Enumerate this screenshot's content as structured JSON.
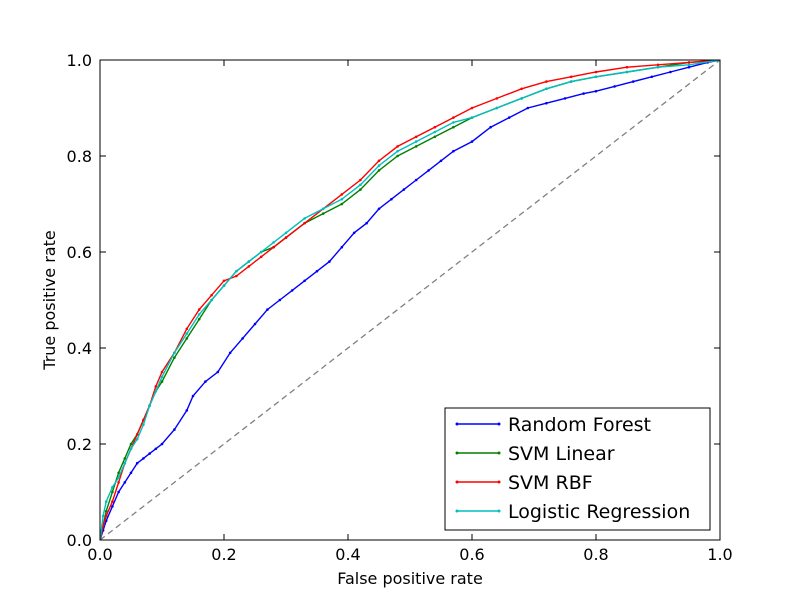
{
  "chart_data": {
    "type": "line",
    "xlabel": "False positive rate",
    "ylabel": "True positive rate",
    "xlim": [
      0.0,
      1.0
    ],
    "ylim": [
      0.0,
      1.0
    ],
    "xticks": [
      "0.0",
      "0.2",
      "0.4",
      "0.6",
      "0.8",
      "1.0"
    ],
    "yticks": [
      "0.0",
      "0.2",
      "0.4",
      "0.6",
      "0.8",
      "1.0"
    ],
    "grid": false,
    "legend_position": "lower-right",
    "reference_line": {
      "x": [
        0,
        1
      ],
      "y": [
        0,
        1
      ],
      "color": "#808080",
      "style": "dashed"
    },
    "series": [
      {
        "name": "Random Forest",
        "color": "#0000ff",
        "x": [
          0,
          0.005,
          0.01,
          0.02,
          0.03,
          0.04,
          0.05,
          0.06,
          0.07,
          0.08,
          0.09,
          0.1,
          0.12,
          0.14,
          0.15,
          0.17,
          0.19,
          0.21,
          0.23,
          0.25,
          0.27,
          0.29,
          0.31,
          0.33,
          0.35,
          0.37,
          0.39,
          0.41,
          0.43,
          0.45,
          0.47,
          0.49,
          0.51,
          0.53,
          0.55,
          0.57,
          0.6,
          0.63,
          0.66,
          0.69,
          0.72,
          0.75,
          0.78,
          0.8,
          0.83,
          0.86,
          0.89,
          0.92,
          0.95,
          0.98,
          1.0
        ],
        "y": [
          0,
          0.02,
          0.04,
          0.07,
          0.1,
          0.12,
          0.14,
          0.16,
          0.17,
          0.18,
          0.19,
          0.2,
          0.23,
          0.27,
          0.3,
          0.33,
          0.35,
          0.39,
          0.42,
          0.45,
          0.48,
          0.5,
          0.52,
          0.54,
          0.56,
          0.58,
          0.61,
          0.64,
          0.66,
          0.69,
          0.71,
          0.73,
          0.75,
          0.77,
          0.79,
          0.81,
          0.83,
          0.86,
          0.88,
          0.9,
          0.91,
          0.92,
          0.93,
          0.935,
          0.945,
          0.955,
          0.965,
          0.975,
          0.985,
          0.995,
          1.0
        ]
      },
      {
        "name": "SVM Linear",
        "color": "#008000",
        "x": [
          0,
          0.005,
          0.01,
          0.02,
          0.03,
          0.04,
          0.05,
          0.06,
          0.07,
          0.08,
          0.09,
          0.1,
          0.12,
          0.14,
          0.16,
          0.18,
          0.2,
          0.22,
          0.24,
          0.26,
          0.28,
          0.3,
          0.33,
          0.36,
          0.39,
          0.42,
          0.45,
          0.48,
          0.51,
          0.54,
          0.57,
          0.6,
          0.64,
          0.68,
          0.72,
          0.76,
          0.8,
          0.85,
          0.9,
          0.95,
          1.0
        ],
        "y": [
          0,
          0.03,
          0.06,
          0.1,
          0.14,
          0.17,
          0.2,
          0.22,
          0.25,
          0.28,
          0.31,
          0.33,
          0.38,
          0.42,
          0.46,
          0.5,
          0.53,
          0.56,
          0.58,
          0.6,
          0.61,
          0.63,
          0.66,
          0.68,
          0.7,
          0.73,
          0.77,
          0.8,
          0.82,
          0.84,
          0.86,
          0.88,
          0.9,
          0.92,
          0.94,
          0.955,
          0.965,
          0.975,
          0.985,
          0.995,
          1.0
        ]
      },
      {
        "name": "SVM RBF",
        "color": "#ff0000",
        "x": [
          0,
          0.005,
          0.01,
          0.02,
          0.03,
          0.04,
          0.05,
          0.06,
          0.07,
          0.08,
          0.09,
          0.1,
          0.12,
          0.14,
          0.16,
          0.18,
          0.2,
          0.22,
          0.24,
          0.26,
          0.28,
          0.3,
          0.33,
          0.36,
          0.39,
          0.42,
          0.45,
          0.48,
          0.51,
          0.54,
          0.57,
          0.6,
          0.64,
          0.68,
          0.72,
          0.76,
          0.8,
          0.85,
          0.9,
          0.95,
          1.0
        ],
        "y": [
          0,
          0.03,
          0.05,
          0.08,
          0.12,
          0.16,
          0.19,
          0.22,
          0.25,
          0.28,
          0.32,
          0.35,
          0.39,
          0.44,
          0.48,
          0.51,
          0.54,
          0.55,
          0.57,
          0.59,
          0.61,
          0.63,
          0.66,
          0.69,
          0.72,
          0.75,
          0.79,
          0.82,
          0.84,
          0.86,
          0.88,
          0.9,
          0.92,
          0.94,
          0.955,
          0.965,
          0.975,
          0.985,
          0.99,
          0.995,
          1.0
        ]
      },
      {
        "name": "Logistic Regression",
        "color": "#00bfbf",
        "x": [
          0,
          0.005,
          0.01,
          0.02,
          0.03,
          0.04,
          0.05,
          0.06,
          0.07,
          0.08,
          0.09,
          0.1,
          0.12,
          0.14,
          0.16,
          0.18,
          0.2,
          0.22,
          0.24,
          0.26,
          0.28,
          0.3,
          0.33,
          0.36,
          0.39,
          0.42,
          0.45,
          0.48,
          0.51,
          0.54,
          0.57,
          0.6,
          0.64,
          0.68,
          0.72,
          0.76,
          0.8,
          0.85,
          0.9,
          0.95,
          1.0
        ],
        "y": [
          0,
          0.05,
          0.08,
          0.11,
          0.13,
          0.16,
          0.19,
          0.21,
          0.24,
          0.28,
          0.31,
          0.34,
          0.39,
          0.43,
          0.47,
          0.5,
          0.53,
          0.56,
          0.58,
          0.6,
          0.62,
          0.64,
          0.67,
          0.69,
          0.71,
          0.74,
          0.78,
          0.81,
          0.83,
          0.85,
          0.87,
          0.88,
          0.9,
          0.92,
          0.94,
          0.955,
          0.965,
          0.975,
          0.985,
          0.99,
          1.0
        ]
      }
    ]
  }
}
